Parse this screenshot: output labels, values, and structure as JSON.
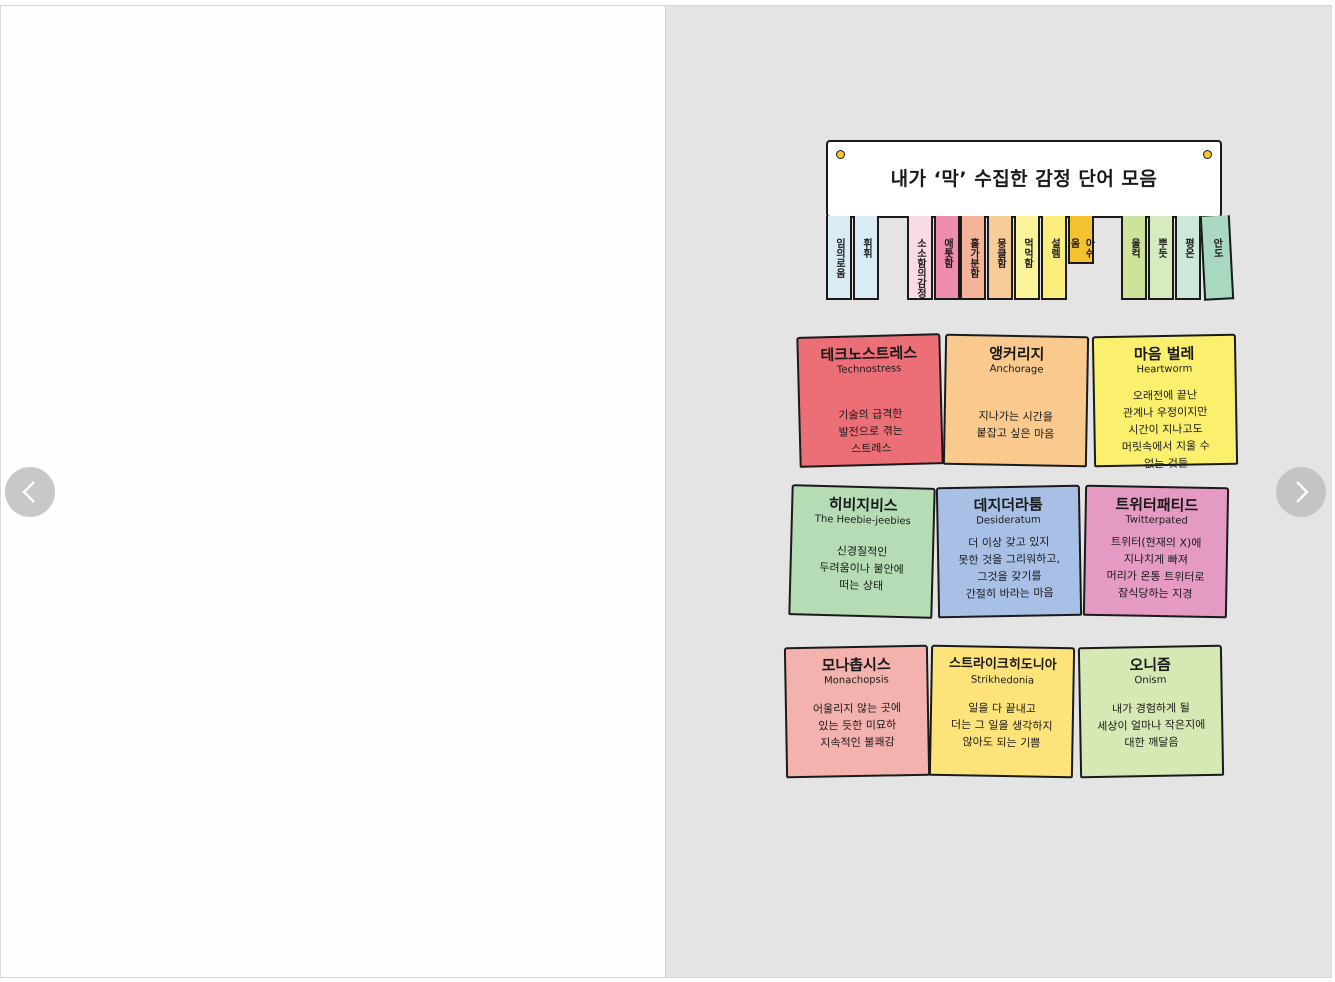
{
  "viewer": {
    "prev_label": "Previous page",
    "next_label": "Next page"
  },
  "banner": {
    "title": "내가 ‘막’ 수집한 감정 단어 모음"
  },
  "strips": [
    {
      "label": "임의로움",
      "color": "#d9ecf4"
    },
    {
      "label": "휘휘",
      "color": "#d9ecf4"
    },
    {
      "label": "소소함의감정",
      "color": "#f9dbe6"
    },
    {
      "label": "애틋함",
      "color": "#ee8db0"
    },
    {
      "label": "홀가분함",
      "color": "#f5b39a"
    },
    {
      "label": "뭉클함",
      "color": "#f8cc98"
    },
    {
      "label": "먹먹함",
      "color": "#fbf39a"
    },
    {
      "label": "설렘",
      "color": "#fcee7c"
    },
    {
      "label": "아쉬움",
      "color": "#f3c22e"
    },
    {
      "label": "울컥",
      "color": "#cde39a"
    },
    {
      "label": "뿌듯",
      "color": "#d6ebc0"
    },
    {
      "label": "평온",
      "color": "#cde8d8"
    },
    {
      "label": "안도",
      "color": "#a8d8c0"
    }
  ],
  "notes": [
    {
      "kr": "테크노스트레스",
      "en": "Technostress",
      "desc": "기술의 급격한\n발전으로 겪는\n스트레스",
      "color": "#ec6f77"
    },
    {
      "kr": "앵커리지",
      "en": "Anchorage",
      "desc": "지나가는 시간을\n붙잡고 싶은 마음",
      "color": "#f9c98d"
    },
    {
      "kr": "마음 벌레",
      "en": "Heartworm",
      "desc": "오래전에 끝난\n관계나 우정이지만\n시간이 지나고도\n머릿속에서 지울 수\n없는 것들",
      "color": "#fbf06e"
    },
    {
      "kr": "히비지비스",
      "en": "The Heebie-jeebies",
      "desc": "신경질적인\n두려움이나 불안에\n떠는 상태",
      "color": "#b5dcb5"
    },
    {
      "kr": "데지더라툼",
      "en": "Desideratum",
      "desc": "더 이상 갖고 있지\n못한 것을 그리워하고,\n그것을 갖기를\n간절히 바라는 마음",
      "color": "#a9c0e6"
    },
    {
      "kr": "트위터패티드",
      "en": "Twitterpated",
      "desc": "트위터(현재의 X)에\n지나치게 빠져\n머리가 온통 트위터로\n잠식당하는 지경",
      "color": "#e59ac4"
    },
    {
      "kr": "모나촙시스",
      "en": "Monachopsis",
      "desc": "어울리지 않는 곳에\n있는 듯한 미묘하\n지속적인 불쾌감",
      "color": "#f4b2ae"
    },
    {
      "kr": "스트라이크히도니아",
      "en": "Strikhedonia",
      "desc": "일을 다 끝내고\n더는 그 일을 생각하지\n않아도 되는 기쁨",
      "color": "#fde37a"
    },
    {
      "kr": "오니즘",
      "en": "Onism",
      "desc": "내가 경험하게 될\n세상이 얼마나 작은지에\n대한 깨달음",
      "color": "#d6e8b4"
    }
  ]
}
